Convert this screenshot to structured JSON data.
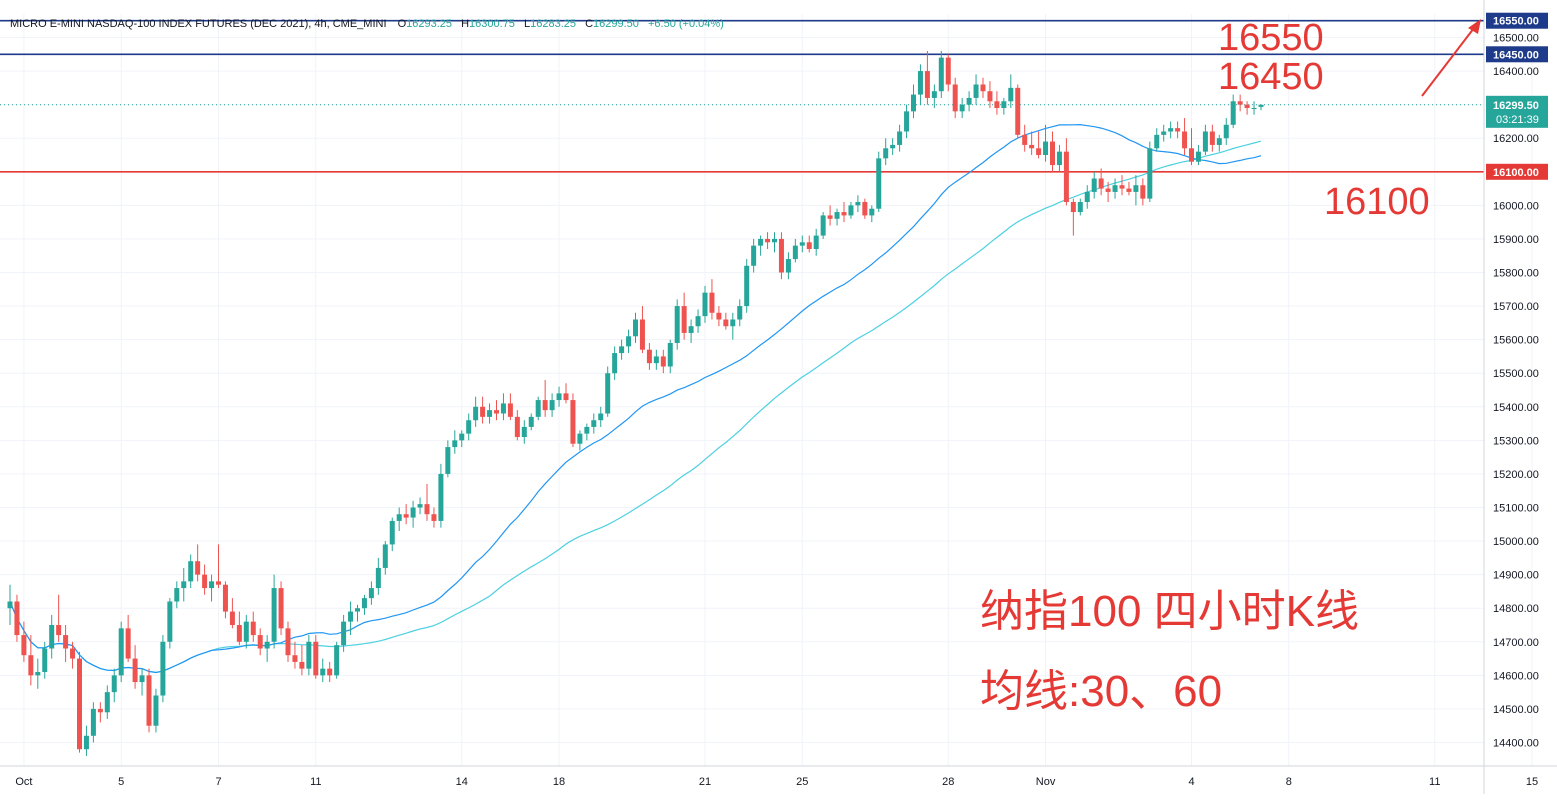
{
  "header": {
    "title": "MICRO E-MINI NASDAQ-100 INDEX FUTURES (DEC 2021), 4h, CME_MINI",
    "open_label": "O",
    "open": "16293.25",
    "high_label": "H",
    "high": "16300.75",
    "low_label": "L",
    "low": "16283.25",
    "close_label": "C",
    "close": "16299.50",
    "change": "+6.50 (+0.04%)"
  },
  "currency": "USD",
  "countdown": "03:21:39",
  "annotations": {
    "level_16550": "16550",
    "level_16450": "16450",
    "level_16100": "16100",
    "caption_line1": "纳指100 四小时K线",
    "caption_line2": "均线:30、60"
  },
  "colors": {
    "up": "#26a69a",
    "down": "#ef5350",
    "ma30": "#2196f3",
    "ma60": "#4dd0e1",
    "level_blue": "#1e3a8a",
    "level_red": "#e53935",
    "annotation_red": "#e53935"
  },
  "chart_data": {
    "type": "candlestick",
    "ylim": [
      14330,
      16570
    ],
    "y_ticks": [
      14400,
      14500,
      14600,
      14700,
      14800,
      14900,
      15000,
      15100,
      15200,
      15300,
      15400,
      15500,
      15600,
      15700,
      15800,
      15900,
      16000,
      16100,
      16200,
      16300,
      16400,
      16500
    ],
    "y_tick_labels": [
      "14400.00",
      "14500.00",
      "14600.00",
      "14700.00",
      "14800.00",
      "14900.00",
      "15000.00",
      "15100.00",
      "15200.00",
      "15300.00",
      "15400.00",
      "15500.00",
      "15600.00",
      "15700.00",
      "15800.00",
      "15900.00",
      "16000.00",
      "16100.00",
      "16200.00",
      "16300.00",
      "16400.00",
      "16500.00"
    ],
    "x_ticks": [
      {
        "label": "Oct",
        "index": 2
      },
      {
        "label": "5",
        "index": 16
      },
      {
        "label": "7",
        "index": 30
      },
      {
        "label": "11",
        "index": 44
      },
      {
        "label": "14",
        "index": 65
      },
      {
        "label": "18",
        "index": 79
      },
      {
        "label": "21",
        "index": 100
      },
      {
        "label": "25",
        "index": 114
      },
      {
        "label": "28",
        "index": 135
      },
      {
        "label": "Nov",
        "index": 149
      },
      {
        "label": "4",
        "index": 170
      },
      {
        "label": "8",
        "index": 184
      },
      {
        "label": "11",
        "index": 205
      },
      {
        "label": "15",
        "index": 219
      },
      {
        "label": "18",
        "index": 240
      }
    ],
    "candles": [
      [
        14800,
        14870,
        14750,
        14820
      ],
      [
        14820,
        14840,
        14700,
        14720
      ],
      [
        14720,
        14760,
        14640,
        14660
      ],
      [
        14660,
        14720,
        14570,
        14600
      ],
      [
        14600,
        14650,
        14560,
        14610
      ],
      [
        14610,
        14700,
        14590,
        14680
      ],
      [
        14680,
        14780,
        14650,
        14750
      ],
      [
        14750,
        14840,
        14700,
        14720
      ],
      [
        14720,
        14750,
        14640,
        14680
      ],
      [
        14680,
        14700,
        14620,
        14650
      ],
      [
        14650,
        14670,
        14370,
        14380
      ],
      [
        14380,
        14450,
        14360,
        14420
      ],
      [
        14420,
        14520,
        14400,
        14500
      ],
      [
        14500,
        14520,
        14460,
        14490
      ],
      [
        14490,
        14570,
        14470,
        14550
      ],
      [
        14550,
        14620,
        14520,
        14600
      ],
      [
        14600,
        14760,
        14580,
        14740
      ],
      [
        14740,
        14780,
        14640,
        14650
      ],
      [
        14650,
        14690,
        14560,
        14580
      ],
      [
        14580,
        14620,
        14540,
        14600
      ],
      [
        14600,
        14620,
        14430,
        14450
      ],
      [
        14450,
        14560,
        14430,
        14540
      ],
      [
        14540,
        14720,
        14520,
        14700
      ],
      [
        14700,
        14830,
        14680,
        14820
      ],
      [
        14820,
        14880,
        14800,
        14860
      ],
      [
        14860,
        14920,
        14820,
        14880
      ],
      [
        14880,
        14960,
        14860,
        14940
      ],
      [
        14940,
        14990,
        14880,
        14900
      ],
      [
        14900,
        14930,
        14840,
        14860
      ],
      [
        14860,
        14900,
        14820,
        14880
      ],
      [
        14880,
        14990,
        14860,
        14870
      ],
      [
        14870,
        14880,
        14770,
        14790
      ],
      [
        14790,
        14830,
        14740,
        14750
      ],
      [
        14750,
        14790,
        14690,
        14700
      ],
      [
        14700,
        14780,
        14680,
        14760
      ],
      [
        14760,
        14790,
        14700,
        14720
      ],
      [
        14720,
        14740,
        14660,
        14680
      ],
      [
        14680,
        14720,
        14640,
        14700
      ],
      [
        14700,
        14900,
        14680,
        14860
      ],
      [
        14860,
        14880,
        14720,
        14740
      ],
      [
        14740,
        14760,
        14640,
        14660
      ],
      [
        14660,
        14700,
        14620,
        14640
      ],
      [
        14640,
        14690,
        14600,
        14620
      ],
      [
        14620,
        14720,
        14600,
        14700
      ],
      [
        14700,
        14720,
        14590,
        14600
      ],
      [
        14600,
        14650,
        14580,
        14620
      ],
      [
        14620,
        14640,
        14580,
        14600
      ],
      [
        14600,
        14700,
        14590,
        14690
      ],
      [
        14690,
        14780,
        14670,
        14760
      ],
      [
        14760,
        14820,
        14720,
        14790
      ],
      [
        14790,
        14810,
        14760,
        14800
      ],
      [
        14800,
        14840,
        14780,
        14830
      ],
      [
        14830,
        14880,
        14810,
        14860
      ],
      [
        14860,
        14950,
        14840,
        14920
      ],
      [
        14920,
        15000,
        14900,
        14990
      ],
      [
        14990,
        15070,
        14970,
        15060
      ],
      [
        15060,
        15100,
        15030,
        15080
      ],
      [
        15080,
        15110,
        15050,
        15070
      ],
      [
        15070,
        15120,
        15040,
        15100
      ],
      [
        15100,
        15130,
        15080,
        15110
      ],
      [
        15110,
        15170,
        15060,
        15080
      ],
      [
        15080,
        15100,
        15040,
        15060
      ],
      [
        15060,
        15230,
        15040,
        15200
      ],
      [
        15200,
        15300,
        15190,
        15280
      ],
      [
        15280,
        15330,
        15260,
        15300
      ],
      [
        15300,
        15330,
        15280,
        15320
      ],
      [
        15320,
        15380,
        15300,
        15360
      ],
      [
        15360,
        15430,
        15340,
        15400
      ],
      [
        15400,
        15430,
        15350,
        15370
      ],
      [
        15370,
        15410,
        15350,
        15390
      ],
      [
        15390,
        15420,
        15360,
        15380
      ],
      [
        15380,
        15440,
        15360,
        15410
      ],
      [
        15410,
        15440,
        15360,
        15370
      ],
      [
        15370,
        15390,
        15300,
        15310
      ],
      [
        15310,
        15360,
        15290,
        15340
      ],
      [
        15340,
        15380,
        15330,
        15370
      ],
      [
        15370,
        15430,
        15360,
        15420
      ],
      [
        15420,
        15480,
        15370,
        15390
      ],
      [
        15390,
        15440,
        15370,
        15420
      ],
      [
        15420,
        15460,
        15400,
        15440
      ],
      [
        15440,
        15470,
        15410,
        15420
      ],
      [
        15420,
        15440,
        15280,
        15290
      ],
      [
        15290,
        15330,
        15270,
        15320
      ],
      [
        15320,
        15350,
        15300,
        15340
      ],
      [
        15340,
        15380,
        15320,
        15360
      ],
      [
        15360,
        15400,
        15340,
        15380
      ],
      [
        15380,
        15520,
        15370,
        15500
      ],
      [
        15500,
        15580,
        15480,
        15560
      ],
      [
        15560,
        15600,
        15540,
        15580
      ],
      [
        15580,
        15630,
        15560,
        15610
      ],
      [
        15610,
        15680,
        15590,
        15660
      ],
      [
        15660,
        15700,
        15560,
        15570
      ],
      [
        15570,
        15590,
        15510,
        15530
      ],
      [
        15530,
        15570,
        15510,
        15550
      ],
      [
        15550,
        15570,
        15500,
        15520
      ],
      [
        15520,
        15600,
        15500,
        15590
      ],
      [
        15590,
        15720,
        15570,
        15700
      ],
      [
        15700,
        15740,
        15600,
        15620
      ],
      [
        15620,
        15660,
        15590,
        15640
      ],
      [
        15640,
        15690,
        15620,
        15670
      ],
      [
        15670,
        15760,
        15650,
        15740
      ],
      [
        15740,
        15780,
        15660,
        15680
      ],
      [
        15680,
        15700,
        15640,
        15660
      ],
      [
        15660,
        15680,
        15630,
        15640
      ],
      [
        15640,
        15680,
        15600,
        15660
      ],
      [
        15660,
        15720,
        15640,
        15700
      ],
      [
        15700,
        15840,
        15680,
        15820
      ],
      [
        15820,
        15900,
        15800,
        15880
      ],
      [
        15880,
        15910,
        15850,
        15900
      ],
      [
        15900,
        15920,
        15870,
        15890
      ],
      [
        15890,
        15920,
        15860,
        15900
      ],
      [
        15900,
        15920,
        15780,
        15800
      ],
      [
        15800,
        15860,
        15780,
        15840
      ],
      [
        15840,
        15900,
        15830,
        15880
      ],
      [
        15880,
        15910,
        15860,
        15890
      ],
      [
        15890,
        15910,
        15860,
        15870
      ],
      [
        15870,
        15930,
        15850,
        15910
      ],
      [
        15910,
        15980,
        15900,
        15970
      ],
      [
        15970,
        16000,
        15940,
        15960
      ],
      [
        15960,
        15990,
        15940,
        15980
      ],
      [
        15980,
        16010,
        15950,
        15970
      ],
      [
        15970,
        16010,
        15960,
        16000
      ],
      [
        16000,
        16030,
        15980,
        16010
      ],
      [
        16010,
        16020,
        15960,
        15970
      ],
      [
        15970,
        16000,
        15950,
        15990
      ],
      [
        15990,
        16160,
        15980,
        16140
      ],
      [
        16140,
        16200,
        16120,
        16170
      ],
      [
        16170,
        16200,
        16150,
        16180
      ],
      [
        16180,
        16240,
        16160,
        16220
      ],
      [
        16220,
        16300,
        16200,
        16280
      ],
      [
        16280,
        16360,
        16260,
        16330
      ],
      [
        16330,
        16420,
        16300,
        16400
      ],
      [
        16400,
        16460,
        16300,
        16320
      ],
      [
        16320,
        16360,
        16290,
        16340
      ],
      [
        16340,
        16460,
        16320,
        16440
      ],
      [
        16440,
        16450,
        16340,
        16360
      ],
      [
        16360,
        16380,
        16260,
        16280
      ],
      [
        16280,
        16320,
        16260,
        16300
      ],
      [
        16300,
        16340,
        16280,
        16320
      ],
      [
        16320,
        16390,
        16300,
        16360
      ],
      [
        16360,
        16380,
        16320,
        16340
      ],
      [
        16340,
        16370,
        16290,
        16310
      ],
      [
        16310,
        16340,
        16270,
        16290
      ],
      [
        16290,
        16320,
        16270,
        16310
      ],
      [
        16310,
        16390,
        16290,
        16350
      ],
      [
        16350,
        16360,
        16200,
        16210
      ],
      [
        16210,
        16240,
        16160,
        16180
      ],
      [
        16180,
        16220,
        16150,
        16170
      ],
      [
        16170,
        16220,
        16140,
        16150
      ],
      [
        16150,
        16240,
        16130,
        16190
      ],
      [
        16190,
        16220,
        16100,
        16120
      ],
      [
        16120,
        16180,
        16100,
        16160
      ],
      [
        16160,
        16200,
        16000,
        16010
      ],
      [
        16010,
        16020,
        15910,
        15980
      ],
      [
        15980,
        16020,
        15970,
        16010
      ],
      [
        16010,
        16060,
        15990,
        16040
      ],
      [
        16040,
        16100,
        16020,
        16080
      ],
      [
        16080,
        16110,
        16030,
        16050
      ],
      [
        16050,
        16070,
        16010,
        16040
      ],
      [
        16040,
        16080,
        16020,
        16060
      ],
      [
        16060,
        16090,
        16030,
        16050
      ],
      [
        16050,
        16070,
        16030,
        16040
      ],
      [
        16040,
        16090,
        16000,
        16060
      ],
      [
        16060,
        16080,
        16000,
        16020
      ],
      [
        16020,
        16190,
        16010,
        16170
      ],
      [
        16170,
        16230,
        16160,
        16210
      ],
      [
        16210,
        16240,
        16190,
        16220
      ],
      [
        16220,
        16250,
        16200,
        16230
      ],
      [
        16230,
        16250,
        16200,
        16220
      ],
      [
        16220,
        16260,
        16150,
        16170
      ],
      [
        16170,
        16230,
        16120,
        16130
      ],
      [
        16130,
        16180,
        16120,
        16160
      ],
      [
        16160,
        16240,
        16150,
        16220
      ],
      [
        16220,
        16240,
        16160,
        16180
      ],
      [
        16180,
        16210,
        16160,
        16200
      ],
      [
        16200,
        16260,
        16180,
        16240
      ],
      [
        16240,
        16330,
        16230,
        16310
      ],
      [
        16310,
        16330,
        16280,
        16300
      ],
      [
        16300,
        16310,
        16270,
        16290
      ],
      [
        16290,
        16310,
        16270,
        16290
      ],
      [
        16293.25,
        16300.75,
        16283.25,
        16299.5
      ]
    ],
    "ma30": [],
    "ma60": [],
    "price_levels": [
      {
        "value": 16550,
        "label": "16550.00",
        "color": "#1e3a8a"
      },
      {
        "value": 16450,
        "label": "16450.00",
        "color": "#1e3a8a"
      },
      {
        "value": 16100,
        "label": "16100.00",
        "color": "#e53935"
      }
    ],
    "last_price": 16299.5,
    "last_price_label": "16299.50"
  }
}
